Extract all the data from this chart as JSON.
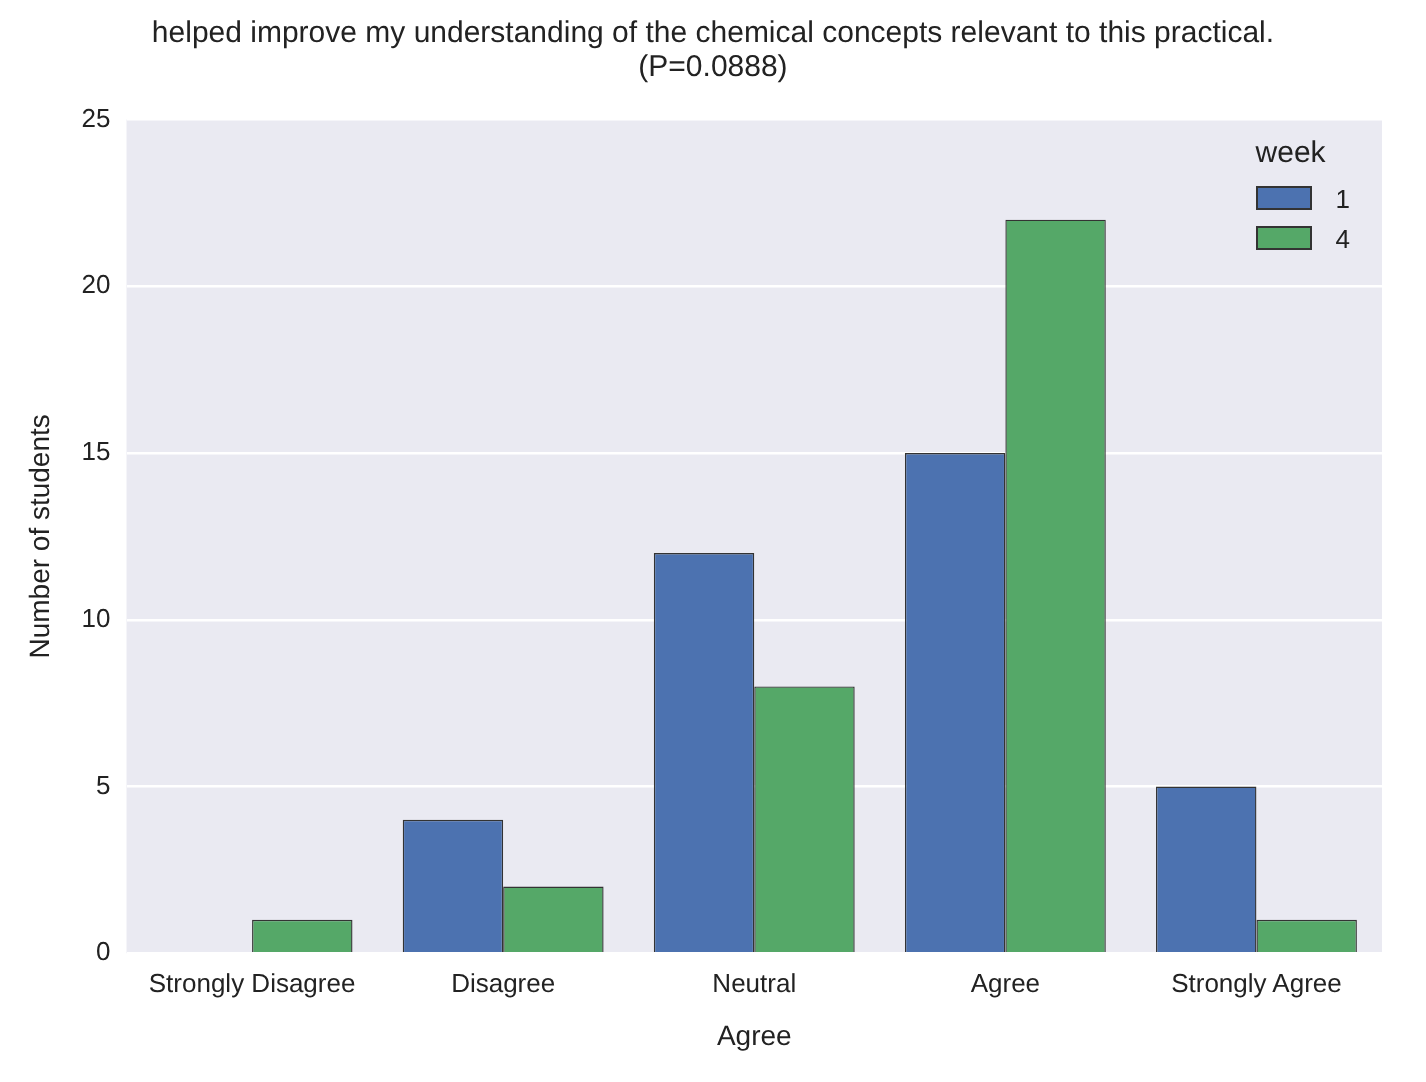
{
  "chart_data": {
    "type": "bar",
    "title": "helped improve my understanding of the chemical concepts relevant to this practical. (P=0.0888)",
    "xlabel": "Agree",
    "ylabel": "Number of students",
    "legend_title": "week",
    "categories": [
      "Strongly Disagree",
      "Disagree",
      "Neutral",
      "Agree",
      "Strongly Agree"
    ],
    "series": [
      {
        "name": "1",
        "color": "#4c72b0",
        "values": [
          0,
          4,
          12,
          15,
          5
        ]
      },
      {
        "name": "4",
        "color": "#55a868",
        "values": [
          1,
          2,
          8,
          22,
          1
        ]
      }
    ],
    "ylim": [
      0,
      25
    ],
    "yticks": [
      0,
      5,
      10,
      15,
      20,
      25
    ],
    "grid": "y",
    "legend": "top right"
  }
}
